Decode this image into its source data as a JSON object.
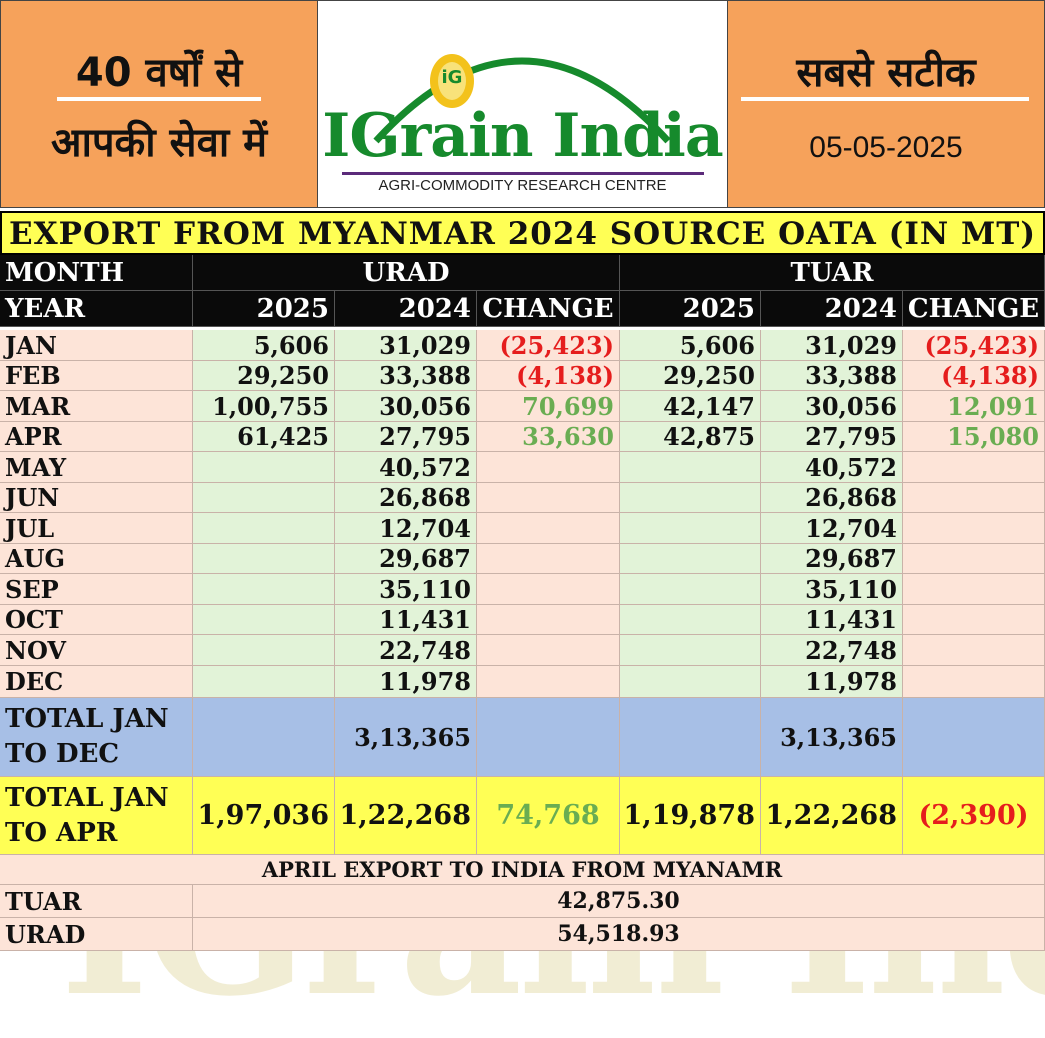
{
  "header": {
    "left_line1": "40 वर्षों से",
    "left_line2": "आपकी सेवा में",
    "right_line1": "सबसे सटीक",
    "date": "05-05-2025",
    "logo_mark": "iG",
    "logo_name": "IGrain India",
    "logo_tagline": "AGRI-COMMODITY RESEARCH CENTRE"
  },
  "table": {
    "title": "EXPORT FROM MYANMAR 2024 SOURCE OATA (IN MT)",
    "month_label": "MONTH",
    "year_label": "YEAR",
    "urad_label": "URAD",
    "tuar_label": "TUAR",
    "col_2025": "2025",
    "col_2024": "2024",
    "col_change": "CHANGE",
    "rows": [
      {
        "month": "JAN",
        "u25": "5,606",
        "u24": "31,029",
        "uch": "(25,423)",
        "t25": "5,606",
        "t24": "31,029",
        "tch": "(25,423)"
      },
      {
        "month": "FEB",
        "u25": "29,250",
        "u24": "33,388",
        "uch": "(4,138)",
        "t25": "29,250",
        "t24": "33,388",
        "tch": "(4,138)"
      },
      {
        "month": "MAR",
        "u25": "1,00,755",
        "u24": "30,056",
        "uch": "70,699",
        "t25": "42,147",
        "t24": "30,056",
        "tch": "12,091"
      },
      {
        "month": "APR",
        "u25": "61,425",
        "u24": "27,795",
        "uch": "33,630",
        "t25": "42,875",
        "t24": "27,795",
        "tch": "15,080"
      },
      {
        "month": "MAY",
        "u25": "",
        "u24": "40,572",
        "uch": "",
        "t25": "",
        "t24": "40,572",
        "tch": ""
      },
      {
        "month": "JUN",
        "u25": "",
        "u24": "26,868",
        "uch": "",
        "t25": "",
        "t24": "26,868",
        "tch": ""
      },
      {
        "month": "JUL",
        "u25": "",
        "u24": "12,704",
        "uch": "",
        "t25": "",
        "t24": "12,704",
        "tch": ""
      },
      {
        "month": "AUG",
        "u25": "",
        "u24": "29,687",
        "uch": "",
        "t25": "",
        "t24": "29,687",
        "tch": ""
      },
      {
        "month": "SEP",
        "u25": "",
        "u24": "35,110",
        "uch": "",
        "t25": "",
        "t24": "35,110",
        "tch": ""
      },
      {
        "month": "OCT",
        "u25": "",
        "u24": "11,431",
        "uch": "",
        "t25": "",
        "t24": "11,431",
        "tch": ""
      },
      {
        "month": "NOV",
        "u25": "",
        "u24": "22,748",
        "uch": "",
        "t25": "",
        "t24": "22,748",
        "tch": ""
      },
      {
        "month": "DEC",
        "u25": "",
        "u24": "11,978",
        "uch": "",
        "t25": "",
        "t24": "11,978",
        "tch": ""
      }
    ],
    "total_dec": {
      "label1": "TOTAL JAN",
      "label2": "TO DEC",
      "u24": "3,13,365",
      "t24": "3,13,365"
    },
    "total_apr": {
      "label1": "TOTAL JAN",
      "label2": "TO APR",
      "u25": "1,97,036",
      "u24": "1,22,268",
      "uch": "74,768",
      "t25": "1,19,878",
      "t24": "1,22,268",
      "tch": "(2,390)"
    }
  },
  "april_export": {
    "title": "APRIL EXPORT TO INDIA FROM MYANAMR",
    "rows": [
      {
        "label": "TUAR",
        "value": "42,875.30"
      },
      {
        "label": "URAD",
        "value": "54,518.93"
      }
    ]
  },
  "colors": {
    "negative": "#e51d1d",
    "positive": "#6aad52",
    "header_orange": "#f6a25b",
    "title_yellow": "#ffff55",
    "brand_green": "#168a2c"
  }
}
